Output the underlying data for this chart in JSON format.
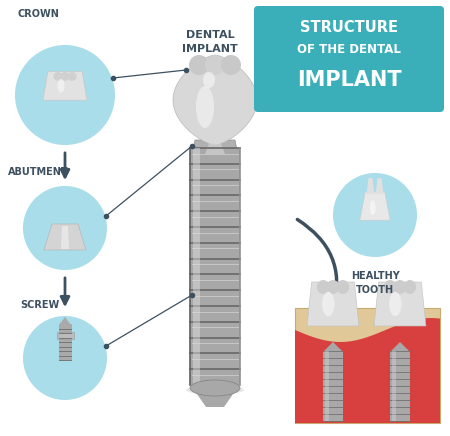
{
  "bg_color": "#ffffff",
  "teal_box_color": "#3aafb9",
  "circle_color": "#a8dde9",
  "arrow_color": "#3d5060",
  "title_line1": "STRUCTURE",
  "title_line2": "OF THE DENTAL",
  "title_line3": "IMPLANT",
  "label_crown": "CROWN",
  "label_abutment": "ABUTMENT",
  "label_screw": "SCREW",
  "label_dental_implant": "DENTAL\nIMPLANT",
  "label_healthy_tooth": "HEALTHY\nTOOTH",
  "font_color_dark": "#3d5060",
  "font_color_white": "#ffffff",
  "gum_color": "#e05555",
  "bone_color": "#d4a96a",
  "screw_color_dark": "#888888",
  "screw_color_light": "#cccccc",
  "crown_color": "#e8e8e8",
  "crown_highlight": "#f5f5f5"
}
